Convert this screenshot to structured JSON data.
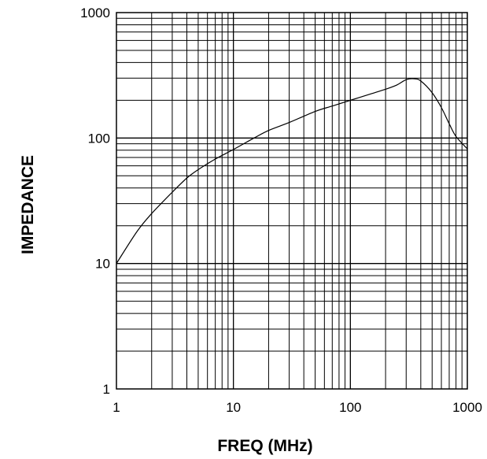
{
  "chart_data": {
    "type": "line",
    "title": "",
    "xlabel": "FREQ (MHz)",
    "ylabel": "IMPEDANCE",
    "x_scale": "log",
    "y_scale": "log",
    "xlim": [
      1,
      1000
    ],
    "ylim": [
      1,
      1000
    ],
    "x_ticks": [
      "1",
      "10",
      "100",
      "1000"
    ],
    "y_ticks": [
      "1000",
      "100",
      "10",
      "1"
    ],
    "grid": true,
    "legend": "none",
    "colors": {
      "line": "#000000",
      "grid": "#000000",
      "background": "#ffffff"
    },
    "series": [
      {
        "x": [
          1,
          1.5,
          2,
          3,
          4,
          5,
          7,
          10,
          15,
          20,
          30,
          50,
          70,
          100,
          150,
          200,
          250,
          300,
          350,
          400,
          500,
          600,
          700,
          800,
          1000
        ],
        "y": [
          10,
          18,
          25,
          37,
          48,
          56,
          68,
          81,
          100,
          115,
          133,
          163,
          180,
          200,
          225,
          245,
          265,
          292,
          297,
          285,
          230,
          175,
          130,
          103,
          82
        ]
      }
    ]
  }
}
